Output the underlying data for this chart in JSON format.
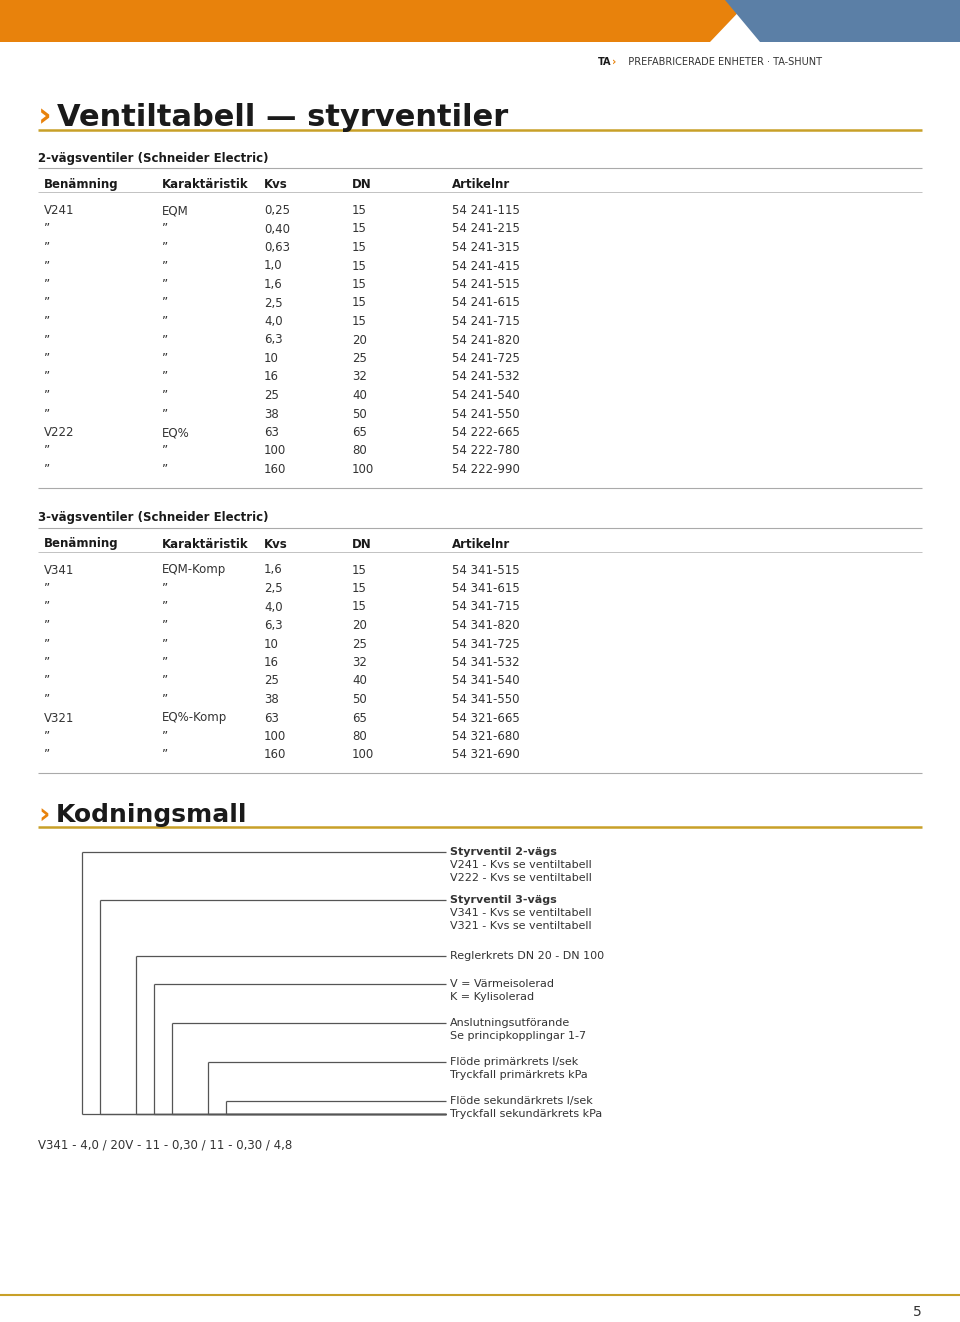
{
  "header_orange_color": "#E8820C",
  "header_blue_color": "#5B7FA6",
  "page_title_text": "Ventiltabell — styrventiler",
  "section1_title": "2-vägsventiler (Schneider Electric)",
  "table1_headers": [
    "Benämning",
    "Karaktäristik",
    "Kvs",
    "DN",
    "Artikelnr"
  ],
  "table1_rows": [
    [
      "V241",
      "EQM",
      "0,25",
      "15",
      "54 241-115"
    ],
    [
      "”",
      "”",
      "0,40",
      "15",
      "54 241-215"
    ],
    [
      "”",
      "”",
      "0,63",
      "15",
      "54 241-315"
    ],
    [
      "”",
      "”",
      "1,0",
      "15",
      "54 241-415"
    ],
    [
      "”",
      "”",
      "1,6",
      "15",
      "54 241-515"
    ],
    [
      "”",
      "”",
      "2,5",
      "15",
      "54 241-615"
    ],
    [
      "”",
      "”",
      "4,0",
      "15",
      "54 241-715"
    ],
    [
      "”",
      "”",
      "6,3",
      "20",
      "54 241-820"
    ],
    [
      "”",
      "”",
      "10",
      "25",
      "54 241-725"
    ],
    [
      "”",
      "”",
      "16",
      "32",
      "54 241-532"
    ],
    [
      "”",
      "”",
      "25",
      "40",
      "54 241-540"
    ],
    [
      "”",
      "”",
      "38",
      "50",
      "54 241-550"
    ],
    [
      "V222",
      "EQ%",
      "63",
      "65",
      "54 222-665"
    ],
    [
      "”",
      "”",
      "100",
      "80",
      "54 222-780"
    ],
    [
      "”",
      "”",
      "160",
      "100",
      "54 222-990"
    ]
  ],
  "section2_title": "3-vägsventiler (Schneider Electric)",
  "table2_headers": [
    "Benämning",
    "Karaktäristik",
    "Kvs",
    "DN",
    "Artikelnr"
  ],
  "table2_rows": [
    [
      "V341",
      "EQM-Komp",
      "1,6",
      "15",
      "54 341-515"
    ],
    [
      "”",
      "”",
      "2,5",
      "15",
      "54 341-615"
    ],
    [
      "”",
      "”",
      "4,0",
      "15",
      "54 341-715"
    ],
    [
      "”",
      "”",
      "6,3",
      "20",
      "54 341-820"
    ],
    [
      "”",
      "”",
      "10",
      "25",
      "54 341-725"
    ],
    [
      "”",
      "”",
      "16",
      "32",
      "54 341-532"
    ],
    [
      "”",
      "”",
      "25",
      "40",
      "54 341-540"
    ],
    [
      "”",
      "”",
      "38",
      "50",
      "54 341-550"
    ],
    [
      "V321",
      "EQ%-Komp",
      "63",
      "65",
      "54 321-665"
    ],
    [
      "”",
      "”",
      "100",
      "80",
      "54 321-680"
    ],
    [
      "”",
      "”",
      "160",
      "100",
      "54 321-690"
    ]
  ],
  "section3_title": "Kodningsmall",
  "coding_example": "V341 - 4,0 / 20V - 11 - 0,30 / 11 - 0,30 / 4,8",
  "page_number": "5",
  "bg_color": "#FFFFFF",
  "text_color": "#333333",
  "orange_line_color": "#C8A028",
  "table_line_color": "#AAAAAA",
  "header_meta": "PREFABRICERADE ENHETER · TA-SHUNT"
}
